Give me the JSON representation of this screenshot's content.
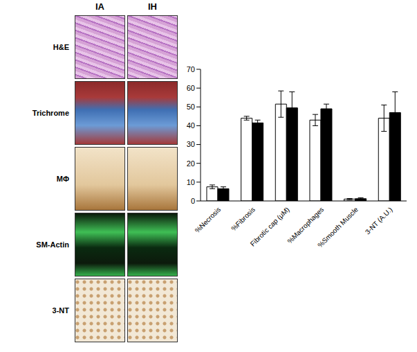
{
  "panels": {
    "columns": [
      "IA",
      "IH"
    ],
    "rows": [
      "H&E",
      "Trichrome",
      "MΦ",
      "SM-Actin",
      "3-NT"
    ]
  },
  "chart_data": {
    "type": "bar",
    "categories": [
      "%Necrosis",
      "%Fibrosis",
      "Fibrotic cap (μM)",
      "%Macrophages",
      "%Smooth Muscle",
      "3-NT (A.U.)"
    ],
    "series": [
      {
        "color": "#ffffff",
        "values": [
          7.5,
          44,
          51.5,
          43,
          1,
          44
        ],
        "errors": [
          1,
          1,
          7,
          3,
          0.3,
          7
        ]
      },
      {
        "color": "#000000",
        "values": [
          6.5,
          41.5,
          49.5,
          49,
          1.2,
          47
        ],
        "errors": [
          1,
          1.5,
          8.5,
          2.5,
          0.5,
          11
        ]
      }
    ],
    "ylim": [
      0,
      70
    ],
    "yticks": [
      0,
      10,
      20,
      30,
      40,
      50,
      60,
      70
    ],
    "grid": false
  }
}
